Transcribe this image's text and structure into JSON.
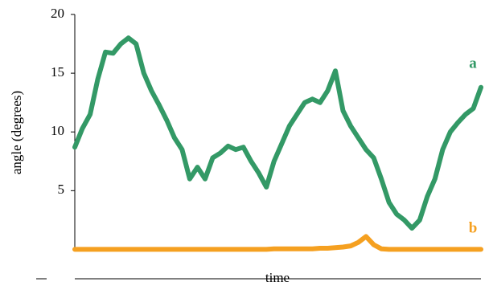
{
  "chart_data": {
    "type": "line",
    "y_label": "angle (degrees)",
    "x_label": "time",
    "ylim": [
      -2.5,
      20
    ],
    "yticks": [
      5,
      10,
      15,
      20
    ],
    "series": [
      {
        "name": "a",
        "color": "#339966",
        "values": [
          8.7,
          10.3,
          11.5,
          14.5,
          16.8,
          16.7,
          17.5,
          18,
          17.5,
          15,
          13.5,
          12.3,
          11,
          9.5,
          8.5,
          6,
          7,
          6,
          7.8,
          8.2,
          8.8,
          8.5,
          8.7,
          7.5,
          6.5,
          5.3,
          7.5,
          9,
          10.5,
          11.5,
          12.5,
          12.8,
          12.5,
          13.5,
          15.2,
          11.8,
          10.5,
          9.5,
          8.5,
          7.8,
          6,
          4,
          3,
          2.5,
          1.8,
          2.5,
          4.5,
          6,
          8.5,
          10,
          10.8,
          11.5,
          12,
          13.8
        ]
      },
      {
        "name": "b",
        "color": "#f5a020",
        "values": [
          0,
          0,
          0,
          0,
          0,
          0,
          0,
          0,
          0,
          0,
          0,
          0,
          0,
          0,
          0,
          0,
          0,
          0,
          0,
          0,
          0,
          0,
          0,
          0,
          0,
          0,
          0.05,
          0.05,
          0.05,
          0.05,
          0.05,
          0.05,
          0.1,
          0.1,
          0.15,
          0.2,
          0.3,
          0.6,
          1.1,
          0.4,
          0.05,
          0,
          0,
          0,
          0,
          0,
          0,
          0,
          0,
          0,
          0,
          0,
          0,
          0
        ]
      }
    ]
  }
}
